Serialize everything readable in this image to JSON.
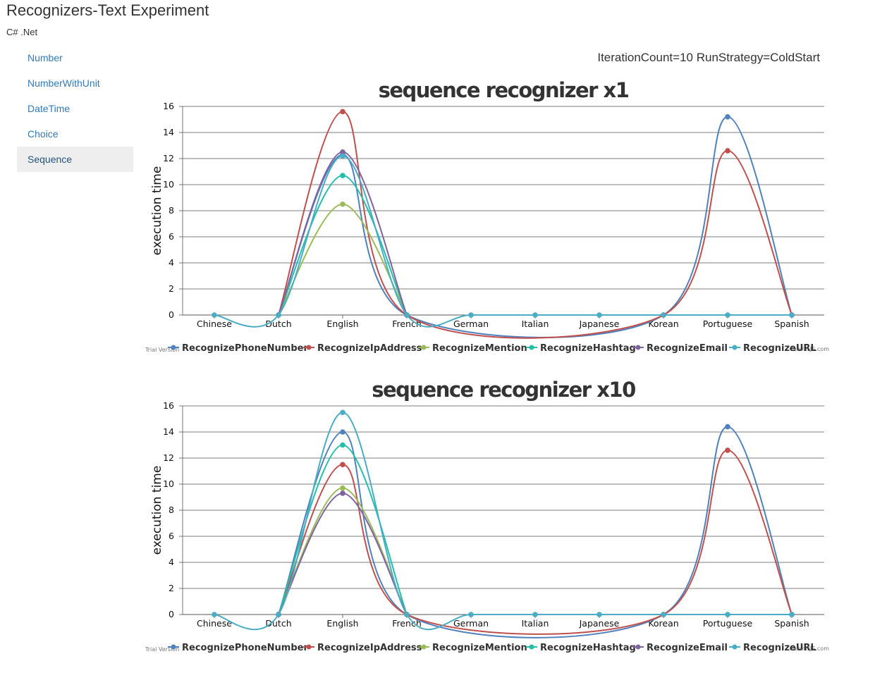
{
  "app": {
    "title": "Recognizers-Text Experiment",
    "subtitle": "C# .Net"
  },
  "sidebar": {
    "items": [
      {
        "label": "Number"
      },
      {
        "label": "NumberWithUnit"
      },
      {
        "label": "DateTime"
      },
      {
        "label": "Choice"
      },
      {
        "label": "Sequence",
        "active": true
      }
    ]
  },
  "run_info": "IterationCount=10 RunStrategy=ColdStart",
  "watermark": {
    "left": "Trial Version",
    "right": "CanvasJS.com"
  },
  "chart_data": [
    {
      "type": "line",
      "title": "sequence recognizer x1",
      "ylabel": "execution time",
      "ylim": [
        0,
        16
      ],
      "yticks": [
        0,
        2,
        4,
        6,
        8,
        10,
        12,
        14,
        16
      ],
      "grid": true,
      "legend": "bottom",
      "categories": [
        "Chinese",
        "Dutch",
        "English",
        "French",
        "German",
        "Italian",
        "Japanese",
        "Korean",
        "Portuguese",
        "Spanish"
      ],
      "series": [
        {
          "name": "RecognizePhoneNumber",
          "color": "#4f81bc",
          "values": [
            null,
            0,
            12.3,
            0,
            null,
            null,
            null,
            0,
            15.2,
            0
          ]
        },
        {
          "name": "RecognizeIpAddress",
          "color": "#c0504e",
          "values": [
            null,
            0,
            15.6,
            0,
            null,
            null,
            null,
            0,
            12.6,
            0
          ]
        },
        {
          "name": "RecognizeMention",
          "color": "#9bbb58",
          "values": [
            null,
            0,
            8.5,
            0,
            null,
            null,
            null,
            null,
            null,
            null
          ]
        },
        {
          "name": "RecognizeHashtag",
          "color": "#23bfaa",
          "values": [
            null,
            0,
            10.7,
            0,
            null,
            null,
            null,
            null,
            null,
            null
          ]
        },
        {
          "name": "RecognizeEmail",
          "color": "#8064a1",
          "values": [
            null,
            0,
            12.5,
            0,
            null,
            null,
            null,
            null,
            null,
            null
          ]
        },
        {
          "name": "RecognizeURL",
          "color": "#4aacc5",
          "values": [
            0,
            0,
            12.2,
            0,
            0,
            0,
            0,
            0,
            0,
            0
          ]
        }
      ]
    },
    {
      "type": "line",
      "title": "sequence recognizer x10",
      "ylabel": "execution time",
      "ylim": [
        0,
        16
      ],
      "yticks": [
        0,
        2,
        4,
        6,
        8,
        10,
        12,
        14,
        16
      ],
      "grid": true,
      "legend": "bottom",
      "categories": [
        "Chinese",
        "Dutch",
        "English",
        "French",
        "German",
        "Italian",
        "Japanese",
        "Korean",
        "Portuguese",
        "Spanish"
      ],
      "series": [
        {
          "name": "RecognizePhoneNumber",
          "color": "#4f81bc",
          "values": [
            null,
            0,
            14.0,
            0,
            null,
            null,
            null,
            0,
            14.4,
            0
          ]
        },
        {
          "name": "RecognizeIpAddress",
          "color": "#c0504e",
          "values": [
            null,
            0,
            11.5,
            0,
            null,
            null,
            null,
            0,
            12.6,
            0
          ]
        },
        {
          "name": "RecognizeMention",
          "color": "#9bbb58",
          "values": [
            null,
            0,
            9.7,
            0,
            null,
            null,
            null,
            null,
            null,
            null
          ]
        },
        {
          "name": "RecognizeHashtag",
          "color": "#23bfaa",
          "values": [
            null,
            0,
            13.0,
            0,
            null,
            null,
            null,
            null,
            null,
            null
          ]
        },
        {
          "name": "RecognizeEmail",
          "color": "#8064a1",
          "values": [
            null,
            0,
            9.3,
            0,
            null,
            null,
            null,
            null,
            null,
            null
          ]
        },
        {
          "name": "RecognizeURL",
          "color": "#4aacc5",
          "values": [
            0,
            0,
            15.5,
            0,
            0,
            0,
            0,
            0,
            0,
            0
          ]
        }
      ]
    }
  ]
}
